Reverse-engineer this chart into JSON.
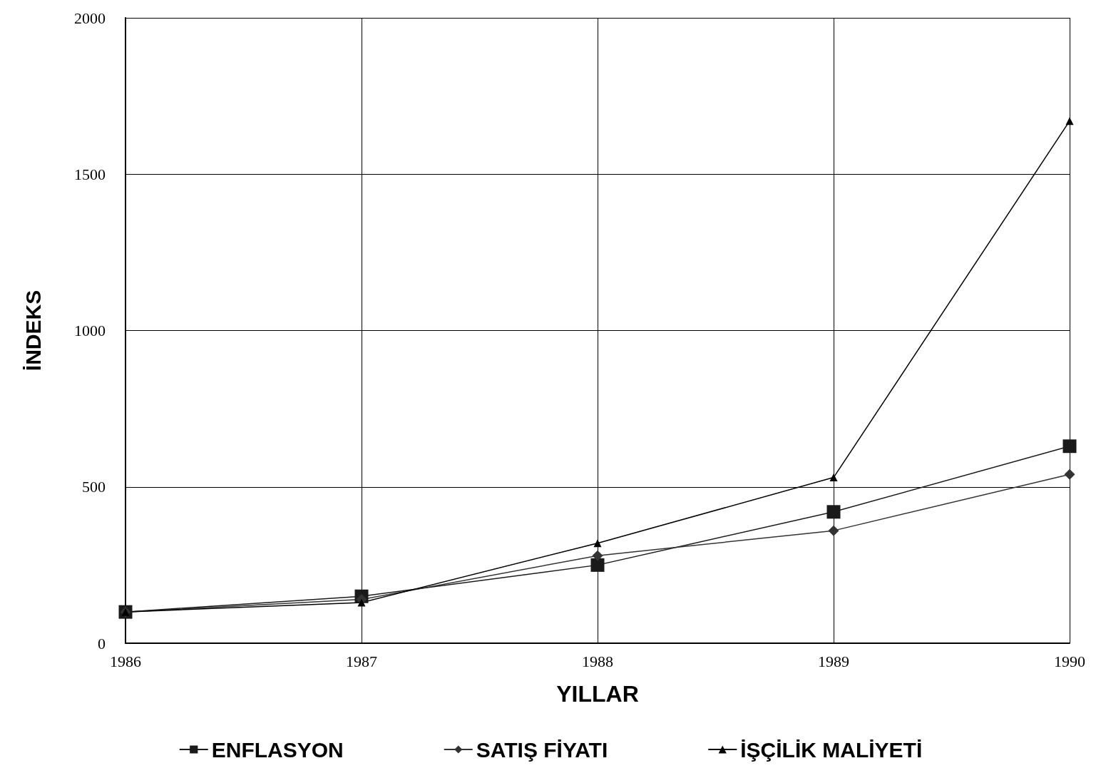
{
  "chart_data": {
    "type": "line",
    "xlabel": "YILLAR",
    "ylabel": "İNDEKS",
    "categories": [
      "1986",
      "1987",
      "1988",
      "1989",
      "1990"
    ],
    "ylim": [
      0,
      2000
    ],
    "yticks": [
      0,
      500,
      1000,
      1500,
      2000
    ],
    "grid": true,
    "legend": "bottom",
    "line_style": "solid",
    "series": [
      {
        "name": "ENFLASYON",
        "color": "#1a1a1a",
        "marker": "square",
        "values": [
          100,
          150,
          250,
          420,
          630
        ]
      },
      {
        "name": "SATIŞ FİYATI",
        "color": "#333333",
        "marker": "diamond",
        "values": [
          100,
          140,
          280,
          360,
          540
        ]
      },
      {
        "name": "İŞÇİLİK MALİYETİ",
        "color": "#000000",
        "marker": "triangle",
        "values": [
          100,
          130,
          320,
          530,
          1670
        ]
      }
    ]
  }
}
